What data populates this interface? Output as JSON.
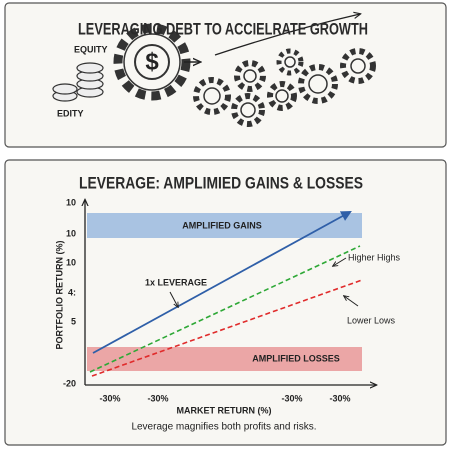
{
  "top_panel": {
    "title": "LEVERAGING DEBT TO ACCIELRATE GROWTH",
    "labels": [
      "EQUITY",
      "EDITY"
    ],
    "gear_symbol": "$"
  },
  "chart_panel": {
    "title": "LEVERAGE: AMPLIMIED GAINS & LOSSES",
    "y_axis_label": "PORTFOLIO RETURN (%)",
    "y_tick_labels": [
      "10",
      "10",
      "10",
      "4:",
      "5",
      "-20"
    ],
    "x_tick_labels": [
      "-30%",
      "-30%",
      "-30%",
      "-30%"
    ],
    "x_axis_label": "MARKET RETURN (%)",
    "bands": [
      "AMPLIFIED GAINS",
      "AMPLIFIED LOSSES"
    ],
    "annotations": [
      "1x LEVERAGE",
      "Higher Highs",
      "Lower Lows"
    ],
    "caption": "Leverage magnifies both profits and risks."
  }
}
